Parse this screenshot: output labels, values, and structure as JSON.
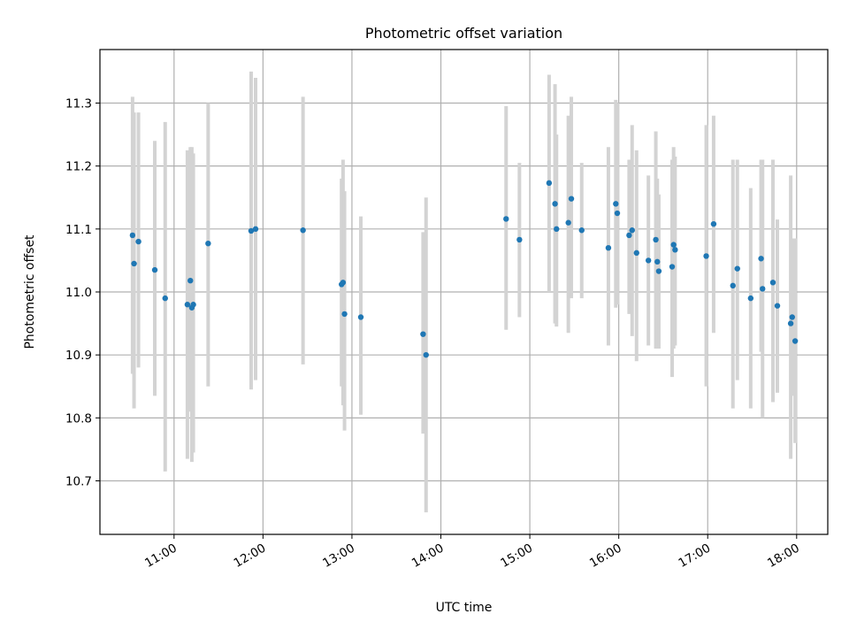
{
  "chart_data": {
    "type": "scatter",
    "title": "Photometric offset variation",
    "xlabel": "UTC time",
    "ylabel": "Photometric offset",
    "xlim": [
      "10:10",
      "18:21"
    ],
    "ylim": [
      10.615,
      11.385
    ],
    "grid": true,
    "x_ticks": [
      "11:00",
      "12:00",
      "13:00",
      "14:00",
      "15:00",
      "16:00",
      "17:00",
      "18:00"
    ],
    "y_ticks": [
      "10.7",
      "10.8",
      "10.9",
      "11.0",
      "11.1",
      "11.2",
      "11.3"
    ],
    "colors": {
      "points": "#1f77b4",
      "errorbars": "#d3d3d3",
      "grid": "#b0b0b0"
    },
    "points": [
      {
        "x": "10:32",
        "y": 11.09,
        "lo": 10.87,
        "hi": 11.31
      },
      {
        "x": "10:33",
        "y": 11.045,
        "lo": 10.815,
        "hi": 11.285
      },
      {
        "x": "10:36",
        "y": 11.08,
        "lo": 10.88,
        "hi": 11.285
      },
      {
        "x": "10:47",
        "y": 11.035,
        "lo": 10.835,
        "hi": 11.24
      },
      {
        "x": "10:54",
        "y": 10.99,
        "lo": 10.715,
        "hi": 11.27
      },
      {
        "x": "11:09",
        "y": 10.98,
        "lo": 10.735,
        "hi": 11.225
      },
      {
        "x": "11:11",
        "y": 11.018,
        "lo": 10.81,
        "hi": 11.23
      },
      {
        "x": "11:12",
        "y": 10.975,
        "lo": 10.73,
        "hi": 11.23
      },
      {
        "x": "11:13",
        "y": 10.98,
        "lo": 10.745,
        "hi": 11.22
      },
      {
        "x": "11:23",
        "y": 11.077,
        "lo": 10.85,
        "hi": 11.3
      },
      {
        "x": "11:52",
        "y": 11.097,
        "lo": 10.845,
        "hi": 11.35
      },
      {
        "x": "11:55",
        "y": 11.1,
        "lo": 10.86,
        "hi": 11.34
      },
      {
        "x": "12:27",
        "y": 11.098,
        "lo": 10.885,
        "hi": 11.31
      },
      {
        "x": "12:53",
        "y": 11.012,
        "lo": 10.85,
        "hi": 11.18
      },
      {
        "x": "12:54",
        "y": 11.015,
        "lo": 10.82,
        "hi": 11.21
      },
      {
        "x": "12:55",
        "y": 10.965,
        "lo": 10.78,
        "hi": 11.16
      },
      {
        "x": "13:06",
        "y": 10.96,
        "lo": 10.805,
        "hi": 11.12
      },
      {
        "x": "13:48",
        "y": 10.933,
        "lo": 10.775,
        "hi": 11.095
      },
      {
        "x": "13:50",
        "y": 10.9,
        "lo": 10.65,
        "hi": 11.15
      },
      {
        "x": "14:44",
        "y": 11.116,
        "lo": 10.94,
        "hi": 11.295
      },
      {
        "x": "14:53",
        "y": 11.083,
        "lo": 10.96,
        "hi": 11.205
      },
      {
        "x": "15:13",
        "y": 11.173,
        "lo": 11.0,
        "hi": 11.345
      },
      {
        "x": "15:17",
        "y": 11.14,
        "lo": 10.95,
        "hi": 11.33
      },
      {
        "x": "15:18",
        "y": 11.1,
        "lo": 10.945,
        "hi": 11.25
      },
      {
        "x": "15:26",
        "y": 11.11,
        "lo": 10.935,
        "hi": 11.28
      },
      {
        "x": "15:28",
        "y": 11.148,
        "lo": 10.99,
        "hi": 11.31
      },
      {
        "x": "15:35",
        "y": 11.098,
        "lo": 10.99,
        "hi": 11.205
      },
      {
        "x": "15:53",
        "y": 11.07,
        "lo": 10.915,
        "hi": 11.23
      },
      {
        "x": "15:58",
        "y": 11.14,
        "lo": 10.975,
        "hi": 11.305
      },
      {
        "x": "15:59",
        "y": 11.125,
        "lo": 10.98,
        "hi": 11.3
      },
      {
        "x": "16:07",
        "y": 11.09,
        "lo": 10.965,
        "hi": 11.21
      },
      {
        "x": "16:09",
        "y": 11.098,
        "lo": 10.93,
        "hi": 11.265
      },
      {
        "x": "16:12",
        "y": 11.062,
        "lo": 10.89,
        "hi": 11.225
      },
      {
        "x": "16:20",
        "y": 11.05,
        "lo": 10.915,
        "hi": 11.185
      },
      {
        "x": "16:25",
        "y": 11.083,
        "lo": 10.91,
        "hi": 11.255
      },
      {
        "x": "16:26",
        "y": 11.048,
        "lo": 10.915,
        "hi": 11.18
      },
      {
        "x": "16:27",
        "y": 11.033,
        "lo": 10.91,
        "hi": 11.155
      },
      {
        "x": "16:36",
        "y": 11.04,
        "lo": 10.865,
        "hi": 11.21
      },
      {
        "x": "16:37",
        "y": 11.075,
        "lo": 10.91,
        "hi": 11.23
      },
      {
        "x": "16:38",
        "y": 11.067,
        "lo": 10.915,
        "hi": 11.215
      },
      {
        "x": "16:59",
        "y": 11.057,
        "lo": 10.85,
        "hi": 11.265
      },
      {
        "x": "17:04",
        "y": 11.108,
        "lo": 10.935,
        "hi": 11.28
      },
      {
        "x": "17:17",
        "y": 11.01,
        "lo": 10.815,
        "hi": 11.21
      },
      {
        "x": "17:20",
        "y": 11.037,
        "lo": 10.86,
        "hi": 11.21
      },
      {
        "x": "17:29",
        "y": 10.99,
        "lo": 10.815,
        "hi": 11.165
      },
      {
        "x": "17:36",
        "y": 11.053,
        "lo": 10.905,
        "hi": 11.21
      },
      {
        "x": "17:37",
        "y": 11.005,
        "lo": 10.8,
        "hi": 11.21
      },
      {
        "x": "17:44",
        "y": 11.015,
        "lo": 10.825,
        "hi": 11.21
      },
      {
        "x": "17:47",
        "y": 10.978,
        "lo": 10.84,
        "hi": 11.115
      },
      {
        "x": "17:56",
        "y": 10.95,
        "lo": 10.735,
        "hi": 11.185
      },
      {
        "x": "17:57",
        "y": 10.96,
        "lo": 10.835,
        "hi": 11.085
      },
      {
        "x": "17:59",
        "y": 10.922,
        "lo": 10.76,
        "hi": 11.085
      }
    ]
  }
}
